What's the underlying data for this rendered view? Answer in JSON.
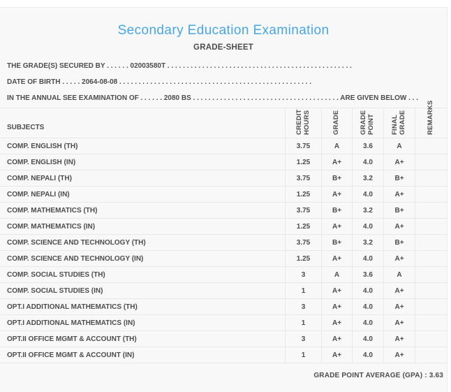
{
  "header": {
    "title": "Secondary Education Examination",
    "subtitle": "GRADE-SHEET"
  },
  "info": {
    "candidate": "THE GRADE(S) SECURED BY . . . . . . 02003580T . . . . . . . . . . . . . . . . . . . . . . . . . . . . . . . . . . . . . . . . . . . . . . . .",
    "date_of_birth": "DATE OF BIRTH . . . . . 2064-08-08 . . . . . . . . . . . . . . . . . . . . . . . . . . . . . . . . . . . . . . . . . . . . . . . . . .",
    "examination": "IN THE ANNUAL SEE EXAMINATION OF . . . . . . 2080 BS . . . . . . . . . . . . . . . . . . . . . . . . . . . . . . . . . . . . . . ARE GIVEN BELOW . . ."
  },
  "table": {
    "subjects_header": "SUBJECTS",
    "columns": [
      "CREDIT HOURS",
      "GRADE",
      "GRADE POINT",
      "FINAL GRADE",
      "REMARKS"
    ],
    "rows": [
      {
        "subject": "COMP. ENGLISH (TH)",
        "credit_hours": "3.75",
        "grade": "A",
        "grade_point": "3.6",
        "final_grade": "A",
        "remarks": ""
      },
      {
        "subject": "COMP. ENGLISH (IN)",
        "credit_hours": "1.25",
        "grade": "A+",
        "grade_point": "4.0",
        "final_grade": "A+",
        "remarks": ""
      },
      {
        "subject": "COMP. NEPALI (TH)",
        "credit_hours": "3.75",
        "grade": "B+",
        "grade_point": "3.2",
        "final_grade": "B+",
        "remarks": ""
      },
      {
        "subject": "COMP. NEPALI (IN)",
        "credit_hours": "1.25",
        "grade": "A+",
        "grade_point": "4.0",
        "final_grade": "A+",
        "remarks": ""
      },
      {
        "subject": "COMP. MATHEMATICS (TH)",
        "credit_hours": "3.75",
        "grade": "B+",
        "grade_point": "3.2",
        "final_grade": "B+",
        "remarks": ""
      },
      {
        "subject": "COMP. MATHEMATICS (IN)",
        "credit_hours": "1.25",
        "grade": "A+",
        "grade_point": "4.0",
        "final_grade": "A+",
        "remarks": ""
      },
      {
        "subject": "COMP. SCIENCE AND TECHNOLOGY (TH)",
        "credit_hours": "3.75",
        "grade": "B+",
        "grade_point": "3.2",
        "final_grade": "B+",
        "remarks": ""
      },
      {
        "subject": "COMP. SCIENCE AND TECHNOLOGY (IN)",
        "credit_hours": "1.25",
        "grade": "A+",
        "grade_point": "4.0",
        "final_grade": "A+",
        "remarks": ""
      },
      {
        "subject": "COMP. SOCIAL STUDIES (TH)",
        "credit_hours": "3",
        "grade": "A",
        "grade_point": "3.6",
        "final_grade": "A",
        "remarks": ""
      },
      {
        "subject": "COMP. SOCIAL STUDIES (IN)",
        "credit_hours": "1",
        "grade": "A+",
        "grade_point": "4.0",
        "final_grade": "A+",
        "remarks": ""
      },
      {
        "subject": "OPT.I ADDITIONAL MATHEMATICS (TH)",
        "credit_hours": "3",
        "grade": "A+",
        "grade_point": "4.0",
        "final_grade": "A+",
        "remarks": ""
      },
      {
        "subject": "OPT.I ADDITIONAL MATHEMATICS (IN)",
        "credit_hours": "1",
        "grade": "A+",
        "grade_point": "4.0",
        "final_grade": "A+",
        "remarks": ""
      },
      {
        "subject": "OPT.II OFFICE MGMT & ACCOUNT (TH)",
        "credit_hours": "3",
        "grade": "A+",
        "grade_point": "4.0",
        "final_grade": "A+",
        "remarks": ""
      },
      {
        "subject": "OPT.II OFFICE MGMT & ACCOUNT (IN)",
        "credit_hours": "1",
        "grade": "A+",
        "grade_point": "4.0",
        "final_grade": "A+",
        "remarks": ""
      }
    ]
  },
  "footer": {
    "gpa_text": "GRADE POINT AVERAGE (GPA) : 3.63"
  },
  "colors": {
    "accent": "#47a6e8",
    "text": "#4c4c4c",
    "card_background": "#f8f8f8",
    "divider": "#e9e9e9"
  }
}
